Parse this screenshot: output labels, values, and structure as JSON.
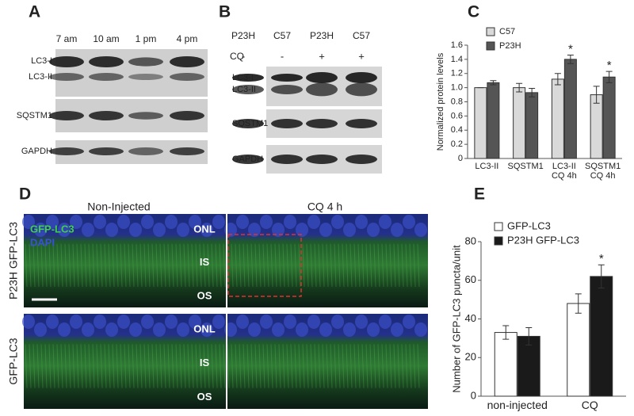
{
  "panel_a": {
    "label": "A",
    "columns": [
      "7 am",
      "10 am",
      "1 pm",
      "4 pm"
    ],
    "rows": [
      "LC3-I",
      "LC3-II",
      "SQSTM1",
      "GAPDH"
    ]
  },
  "panel_b": {
    "label": "B",
    "columns": [
      "P23H",
      "C57",
      "P23H",
      "C57"
    ],
    "treatment_label": "CQ",
    "treatment": [
      "-",
      "-",
      "+",
      "+"
    ],
    "rows": [
      "LC3-I",
      "LC3-II",
      "SQSTM1",
      "GAPDH"
    ]
  },
  "panel_c": {
    "label": "C"
  },
  "panel_d": {
    "label": "D",
    "columns": [
      "Non-Injected",
      "CQ 4 h"
    ],
    "rows": [
      "P23H GFP-LC3",
      "GFP-LC3"
    ],
    "layers": [
      "ONL",
      "IS",
      "OS"
    ],
    "channels": [
      "GFP-LC3",
      "DAPI"
    ]
  },
  "panel_e": {
    "label": "E"
  },
  "chart_data": [
    {
      "type": "bar",
      "y_label": "Normalized protein levels",
      "categories": [
        "LC3-II",
        "SQSTM1",
        "LC3-II\nCQ 4h",
        "SQSTM1\nCQ 4h"
      ],
      "series": [
        {
          "name": "C57",
          "color": "#d9d9d9",
          "values": [
            1.0,
            1.0,
            1.12,
            0.9
          ],
          "errors": [
            0.0,
            0.06,
            0.08,
            0.12
          ],
          "significance": [
            null,
            null,
            null,
            null
          ]
        },
        {
          "name": "P23H",
          "color": "#555555",
          "values": [
            1.07,
            0.93,
            1.4,
            1.15
          ],
          "errors": [
            0.03,
            0.06,
            0.06,
            0.08
          ],
          "significance": [
            null,
            null,
            "*",
            "*"
          ]
        }
      ],
      "ylim": [
        0,
        1.6
      ],
      "yticks": [
        0,
        {
          "value": 0.2,
          "label": "0.2"
        },
        {
          "value": 0.4,
          "label": "0.4"
        },
        {
          "value": 0.6,
          "label": "0.6"
        },
        {
          "value": 0.8,
          "label": "0.8"
        },
        {
          "value": 1,
          "label": "1.0"
        },
        {
          "value": 1.2,
          "label": "1.2"
        },
        {
          "value": 1.4,
          "label": "1.4"
        },
        {
          "value": 1.6,
          "label": "1.6"
        }
      ],
      "grid": false
    },
    {
      "type": "bar",
      "y_label": "Number of GFP-LC3 puncta/unit",
      "categories": [
        "non-injected",
        "CQ"
      ],
      "series": [
        {
          "name": "GFP-LC3",
          "color": "#ffffff",
          "values": [
            33,
            48
          ],
          "errors": [
            3.5,
            5
          ],
          "significance": [
            null,
            null
          ]
        },
        {
          "name": "P23H GFP-LC3",
          "color": "#1a1a1a",
          "values": [
            31,
            62
          ],
          "errors": [
            4.5,
            6
          ],
          "significance": [
            null,
            "*"
          ]
        }
      ],
      "ylim": [
        0,
        80
      ],
      "yticks": [
        0,
        20,
        40,
        60,
        80
      ],
      "grid": false
    }
  ]
}
